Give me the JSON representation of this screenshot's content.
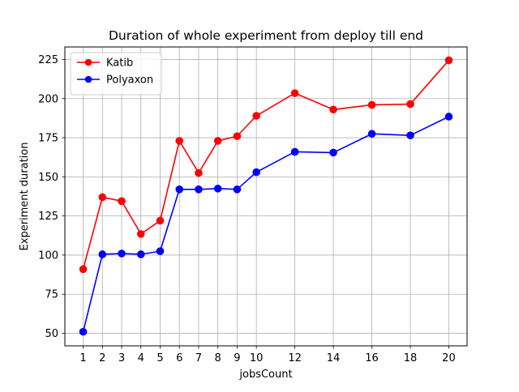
{
  "chart_data": {
    "type": "line",
    "title": "Duration of whole experiment from deploy till end",
    "xlabel": "jobsCount",
    "ylabel": "Experiment duration",
    "xlim": [
      0.05,
      20.95
    ],
    "ylim": [
      42,
      233
    ],
    "x_ticks": [
      1,
      2,
      3,
      4,
      5,
      6,
      7,
      8,
      9,
      10,
      12,
      14,
      16,
      18,
      20
    ],
    "y_ticks": [
      50,
      75,
      100,
      125,
      150,
      175,
      200,
      225
    ],
    "grid": true,
    "legend_position": "upper-left",
    "x": [
      1,
      2,
      3,
      4,
      5,
      6,
      7,
      8,
      9,
      10,
      12,
      14,
      16,
      18,
      20
    ],
    "series": [
      {
        "name": "Katib",
        "color": "#ff0000",
        "marker": "circle",
        "values": [
          91,
          137,
          134.5,
          113.5,
          122,
          173,
          152.5,
          173,
          176,
          189,
          203.5,
          193,
          196,
          196.5,
          224.5
        ]
      },
      {
        "name": "Polyaxon",
        "color": "#0000ff",
        "marker": "circle",
        "values": [
          51,
          100.5,
          101,
          100.5,
          102.5,
          142,
          142,
          142.5,
          142,
          153,
          166,
          165.5,
          177.5,
          176.5,
          188.5
        ]
      }
    ]
  }
}
